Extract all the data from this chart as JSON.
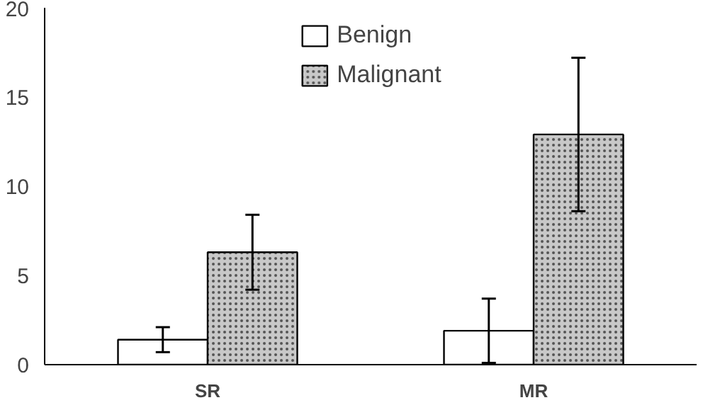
{
  "chart_data": {
    "type": "bar",
    "categories": [
      "SR",
      "MR"
    ],
    "series": [
      {
        "name": "Benign",
        "color": "#ffffff",
        "values": [
          1.4,
          1.9
        ],
        "errors": [
          0.7,
          1.8
        ]
      },
      {
        "name": "Malignant",
        "color": "#c8c8c8",
        "values": [
          6.3,
          12.9
        ],
        "errors": [
          2.1,
          4.3
        ]
      }
    ],
    "ylim": [
      0,
      20
    ],
    "yticks": [
      0,
      5,
      10,
      15,
      20
    ],
    "grid": false,
    "legend": "top"
  }
}
